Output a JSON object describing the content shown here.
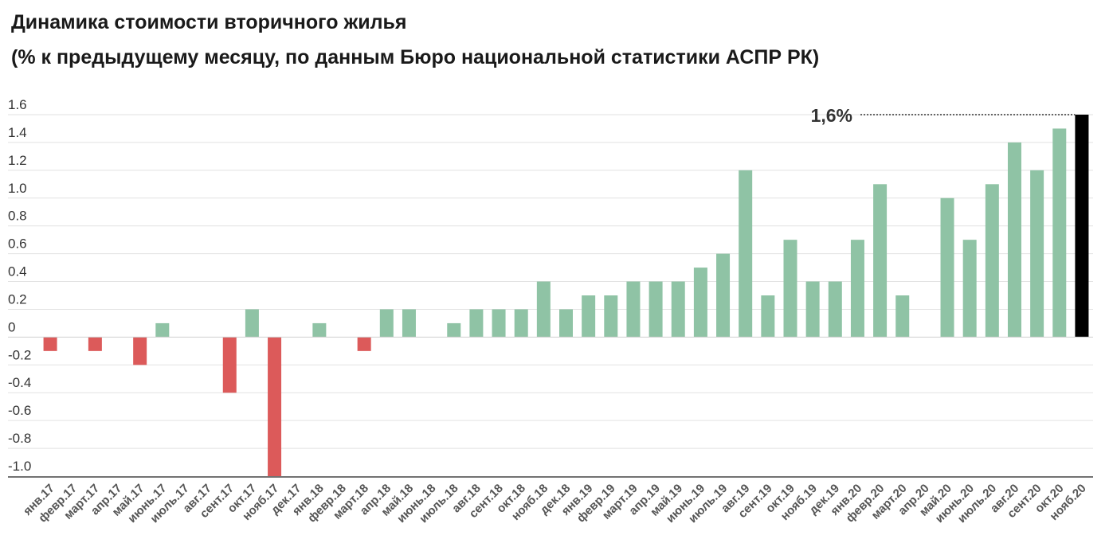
{
  "chart_data": {
    "type": "bar",
    "title": "Динамика стоимости вторичного жилья",
    "subtitle": "(% к предыдущему месяцу, по данным Бюро национальной статистики АСПР РК)",
    "xlabel": "",
    "ylabel": "",
    "ylim": [
      -1.0,
      1.6
    ],
    "yticks": [
      1.6,
      1.4,
      1.2,
      1.0,
      0.8,
      0.6,
      0.4,
      0.2,
      0,
      -0.2,
      -0.4,
      -0.6,
      -0.8,
      -1.0
    ],
    "ytick_labels": [
      "1.6",
      "1.4",
      "1.2",
      "1.0",
      "0.8",
      "0.6",
      "0.4",
      "0.2",
      "0",
      "-0.2",
      "-0.4",
      "-0.6",
      "-0.8",
      "-1.0"
    ],
    "grid": true,
    "categories": [
      "янв.17",
      "февр.17",
      "март.17",
      "апр.17",
      "май.17",
      "июнь.17",
      "июль.17",
      "авг.17",
      "сент.17",
      "окт.17",
      "нояб.17",
      "дек.17",
      "янв.18",
      "февр.18",
      "март.18",
      "апр.18",
      "май.18",
      "июнь.18",
      "июль.18",
      "авг.18",
      "сент.18",
      "окт.18",
      "нояб.18",
      "дек.18",
      "янв.19",
      "февр.19",
      "март.19",
      "апр.19",
      "май.19",
      "июнь.19",
      "июль.19",
      "авг.19",
      "сент.19",
      "окт.19",
      "нояб.19",
      "дек.19",
      "янв.20",
      "февр.20",
      "март.20",
      "апр.20",
      "май.20",
      "июнь.20",
      "июль.20",
      "авг.20",
      "сент.20",
      "окт.20",
      "нояб.20"
    ],
    "values": [
      -0.1,
      0,
      -0.1,
      0,
      -0.2,
      0.1,
      0,
      0,
      -0.4,
      0.2,
      -1.0,
      0,
      0.1,
      0,
      -0.1,
      0.2,
      0.2,
      0,
      0.1,
      0.2,
      0.2,
      0.2,
      0.4,
      0.2,
      0.3,
      0.3,
      0.4,
      0.4,
      0.4,
      0.5,
      0.6,
      1.2,
      0.3,
      0.7,
      0.4,
      0.4,
      0.7,
      1.1,
      0.3,
      0,
      1.0,
      0.7,
      1.1,
      1.4,
      1.2,
      1.5,
      1.6
    ],
    "colors": {
      "positive": "#8fc3a5",
      "negative": "#dc5a5a",
      "highlight": "#000000",
      "grid": "#e2e2e2",
      "axis": "#444444"
    },
    "highlight_index": 46,
    "annotation": {
      "text": "1,6%",
      "value": 1.6
    }
  }
}
